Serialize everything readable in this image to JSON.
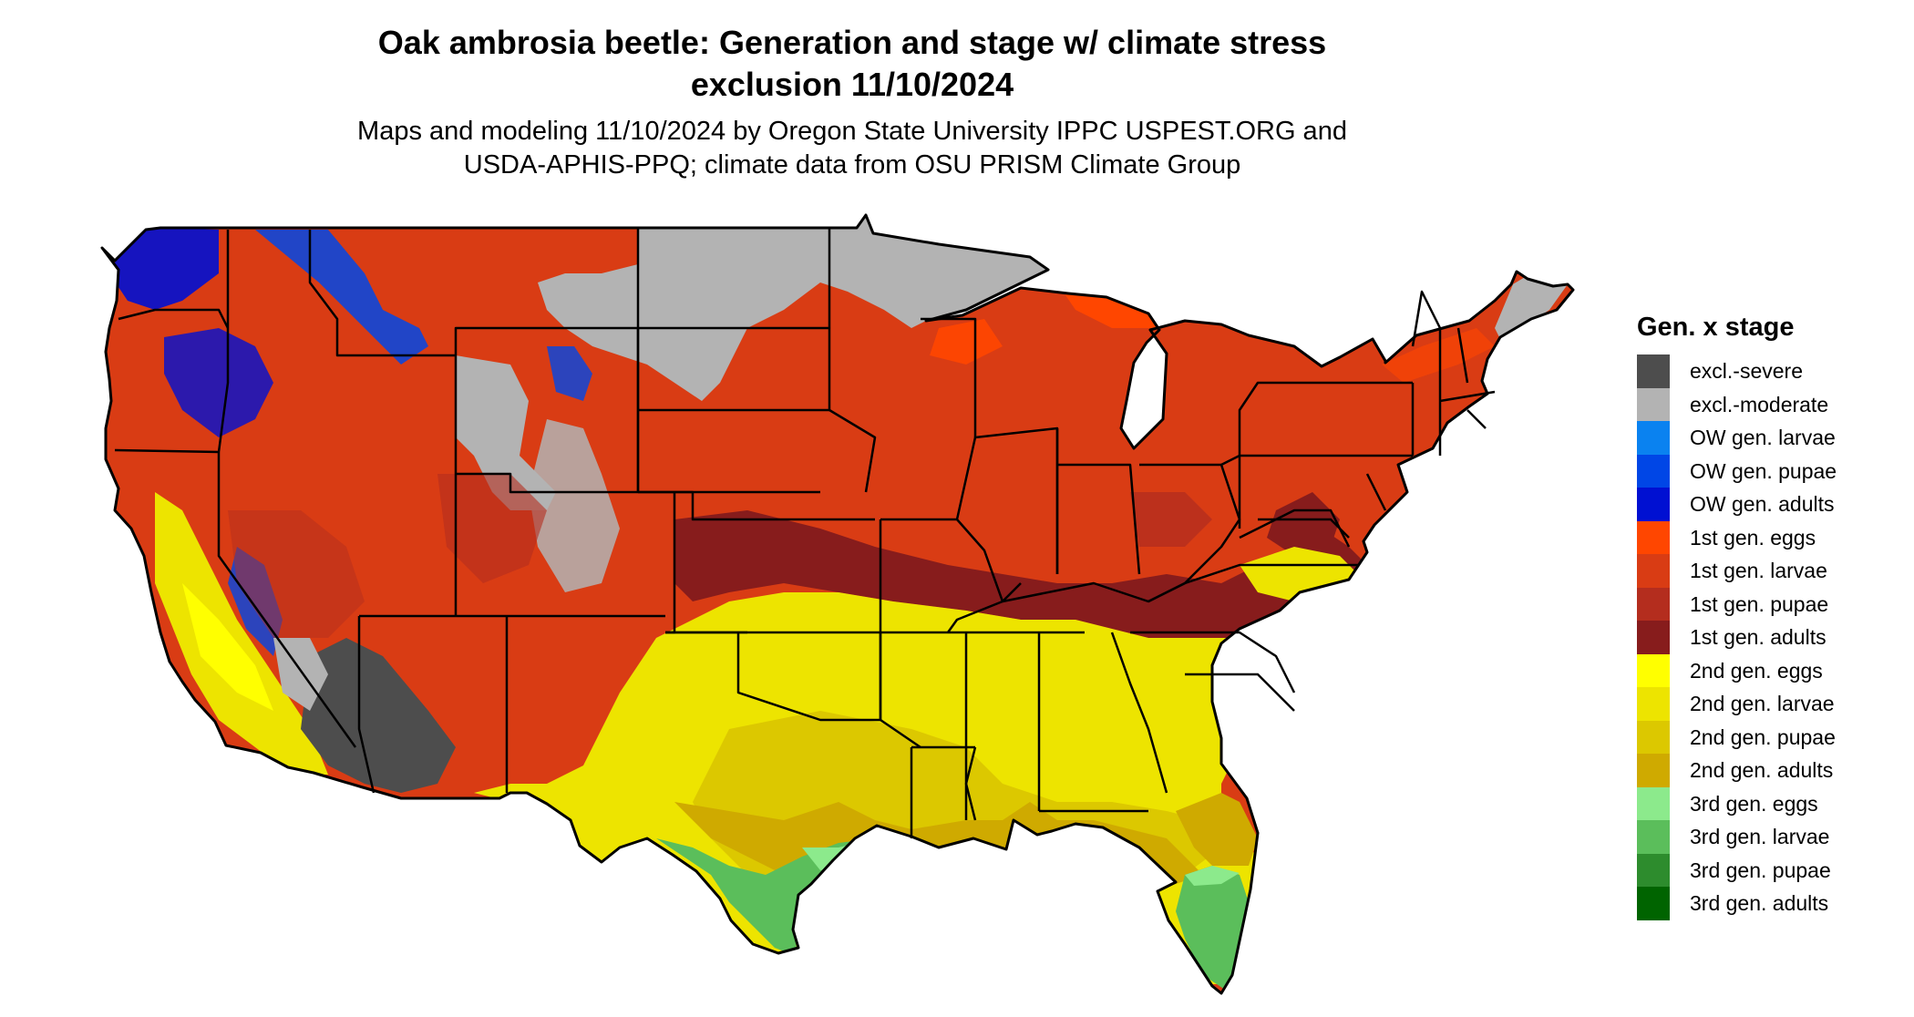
{
  "title": {
    "line1": "Oak ambrosia beetle: Generation and stage w/ climate stress",
    "line2": "exclusion 11/10/2024"
  },
  "subtitle": {
    "line1": "Maps and modeling 11/10/2024 by Oregon State University IPPC USPEST.ORG and",
    "line2": "USDA-APHIS-PPQ; climate data from OSU PRISM Climate Group"
  },
  "legend": {
    "title": "Gen. x stage",
    "items": [
      {
        "label": "excl.-severe",
        "color": "#4d4d4d"
      },
      {
        "label": "excl.-moderate",
        "color": "#b3b3b3"
      },
      {
        "label": "OW gen. larvae",
        "color": "#0a82f0"
      },
      {
        "label": "OW gen. pupae",
        "color": "#0046e6"
      },
      {
        "label": "OW gen. adults",
        "color": "#0010d2"
      },
      {
        "label": "1st gen. eggs",
        "color": "#ff4600"
      },
      {
        "label": "1st gen. larvae",
        "color": "#d93c14"
      },
      {
        "label": "1st gen. pupae",
        "color": "#b42d1e"
      },
      {
        "label": "1st gen. adults",
        "color": "#871c1c"
      },
      {
        "label": "2nd gen. eggs",
        "color": "#ffff00"
      },
      {
        "label": "2nd gen. larvae",
        "color": "#ede400"
      },
      {
        "label": "2nd gen. pupae",
        "color": "#dcc800"
      },
      {
        "label": "2nd gen. adults",
        "color": "#cfaa00"
      },
      {
        "label": "3rd gen. eggs",
        "color": "#8cea8c"
      },
      {
        "label": "3rd gen. larvae",
        "color": "#5bbe5b"
      },
      {
        "label": "3rd gen. pupae",
        "color": "#2d8c2d"
      },
      {
        "label": "3rd gen. adults",
        "color": "#006400"
      }
    ]
  }
}
